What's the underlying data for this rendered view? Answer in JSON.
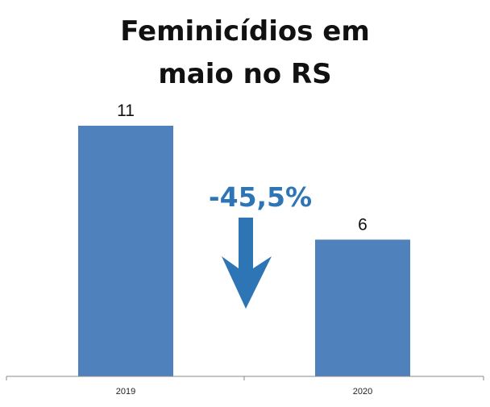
{
  "chart_data": {
    "type": "bar",
    "title_lines": [
      "Feminicídios em",
      "maio no RS"
    ],
    "categories": [
      "2019",
      "2020"
    ],
    "values": [
      11,
      6
    ],
    "data_labels": [
      "11",
      "6"
    ],
    "ylim": [
      0,
      11
    ],
    "grid": false,
    "legend": "none",
    "annotation": {
      "text": "-45,5%",
      "arrow": "down"
    }
  },
  "colors": {
    "bar": "#4f81bd",
    "annotation": "#2e75b6",
    "axis": "#888888",
    "text": "#111111"
  }
}
